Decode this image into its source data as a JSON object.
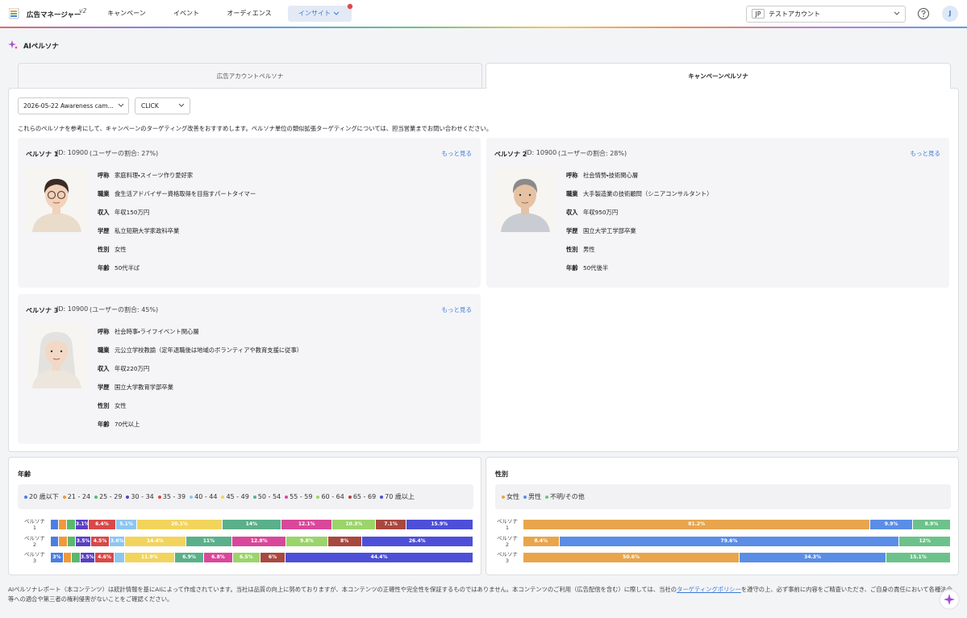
{
  "header": {
    "app_name": "広告マネージャー",
    "version": "v2",
    "nav": [
      "キャンペーン",
      "イベント",
      "オーディエンス",
      "インサイト"
    ],
    "account_region": "JP",
    "account_name": "テストアカウント",
    "avatar": "J"
  },
  "page_title": "AIペルソナ",
  "tabs": [
    "広告アカウントペルソナ",
    "キャンペーンペルソナ"
  ],
  "filters": {
    "campaign": "2026-05-22 Awareness cam...",
    "event": "CLICK"
  },
  "description": "これらのペルソナを参考にして、キャンペーンのターゲティング改善をおすすめします。ペルソナ単位の類似拡張ターゲティングについては、担当営業までお問い合わせください。",
  "personas": [
    {
      "name": "ペルソナ 1",
      "id": "ID: 10900",
      "share": "(ユーザーの割合: 27%)",
      "more": "もっと見る",
      "fields": [
        {
          "label": "呼称",
          "value": "家庭料理・スイーツ作り愛好家"
        },
        {
          "label": "職業",
          "value": "食生活アドバイザー資格取得を目指すパートタイマー"
        },
        {
          "label": "収入",
          "value": "年収150万円"
        },
        {
          "label": "学歴",
          "value": "私立短期大学家政科卒業"
        },
        {
          "label": "性別",
          "value": "女性"
        },
        {
          "label": "年齢",
          "value": "50代半ば"
        }
      ]
    },
    {
      "name": "ペルソナ 2",
      "id": "ID: 10900",
      "share": "(ユーザーの割合: 28%)",
      "more": "もっと見る",
      "fields": [
        {
          "label": "呼称",
          "value": "社会情勢・技術関心層"
        },
        {
          "label": "職業",
          "value": "大手製造業の技術顧問（シニアコンサルタント）"
        },
        {
          "label": "収入",
          "value": "年収950万円"
        },
        {
          "label": "学歴",
          "value": "国立大学工学部卒業"
        },
        {
          "label": "性別",
          "value": "男性"
        },
        {
          "label": "年齢",
          "value": "50代後半"
        }
      ]
    },
    {
      "name": "ペルソナ 3",
      "id": "ID: 10900",
      "share": "(ユーザーの割合: 45%)",
      "more": "もっと見る",
      "fields": [
        {
          "label": "呼称",
          "value": "社会時事・ライフイベント関心層"
        },
        {
          "label": "職業",
          "value": "元公立学校教諭（定年退職後は地域のボランティアや教育支援に従事）"
        },
        {
          "label": "収入",
          "value": "年収220万円"
        },
        {
          "label": "学歴",
          "value": "国立大学教育学部卒業"
        },
        {
          "label": "性別",
          "value": "女性"
        },
        {
          "label": "年齢",
          "value": "70代以上"
        }
      ]
    }
  ],
  "chart_data": [
    {
      "type": "bar",
      "stacked": true,
      "title": "年齢",
      "categories": [
        "ペルソナ 1",
        "ペルソナ 2",
        "ペルソナ 3"
      ],
      "series": [
        {
          "name": "20 歳以下",
          "color": "#4a7fe0",
          "values": [
            2.0,
            2.0,
            3
          ],
          "value_labels": [
            null,
            null,
            "3%"
          ]
        },
        {
          "name": "21 - 24",
          "color": "#f0993a",
          "values": [
            1.9,
            2.0,
            2.0
          ],
          "value_labels": [
            null,
            null,
            null
          ]
        },
        {
          "name": "25 - 29",
          "color": "#59b86e",
          "values": [
            2.0,
            2.0,
            2.0
          ],
          "value_labels": [
            null,
            null,
            null
          ]
        },
        {
          "name": "30 - 34",
          "color": "#5b3fc4",
          "values": [
            3.1,
            3.5,
            3.5
          ],
          "value_labels": [
            "3.1%",
            "3.5%",
            "3.5%"
          ]
        },
        {
          "name": "35 - 39",
          "color": "#d94848",
          "values": [
            6.4,
            4.5,
            4.6
          ],
          "value_labels": [
            "6.4%",
            "4.5%",
            "4.6%"
          ]
        },
        {
          "name": "40 - 44",
          "color": "#8cc6f0",
          "values": [
            5.1,
            3.6,
            2.4
          ],
          "value_labels": [
            "5.1%",
            "3.6%",
            null
          ]
        },
        {
          "name": "45 - 49",
          "color": "#f2d45c",
          "values": [
            20.1,
            14.4,
            11.9
          ],
          "value_labels": [
            "20.1%",
            "14.4%",
            "11.9%"
          ]
        },
        {
          "name": "50 - 54",
          "color": "#5ab08a",
          "values": [
            14,
            11,
            6.9
          ],
          "value_labels": [
            "14%",
            "11%",
            "6.9%"
          ]
        },
        {
          "name": "55 - 59",
          "color": "#d9479a",
          "values": [
            12.1,
            12.8,
            6.8
          ],
          "value_labels": [
            "12.1%",
            "12.8%",
            "6.8%"
          ]
        },
        {
          "name": "60 - 64",
          "color": "#9bd46a",
          "values": [
            10.3,
            9.8,
            6.5
          ],
          "value_labels": [
            "10.3%",
            "9.8%",
            "6.5%"
          ]
        },
        {
          "name": "65 - 69",
          "color": "#a8483f",
          "values": [
            7.1,
            8,
            6
          ],
          "value_labels": [
            "7.1%",
            "8%",
            "6%"
          ]
        },
        {
          "name": "70 歳以上",
          "color": "#4d4fd8",
          "values": [
            15.9,
            26.4,
            44.4
          ],
          "value_labels": [
            "15.9%",
            "26.4%",
            "44.4%"
          ]
        }
      ]
    },
    {
      "type": "bar",
      "stacked": true,
      "title": "性別",
      "categories": [
        "ペルソナ 1",
        "ペルソナ 2",
        "ペルソナ 3"
      ],
      "series": [
        {
          "name": "女性",
          "color": "#e8a54b",
          "values": [
            81.2,
            8.4,
            50.6
          ],
          "value_labels": [
            "81.2%",
            "8.4%",
            "50.6%"
          ]
        },
        {
          "name": "男性",
          "color": "#5a8de6",
          "values": [
            9.9,
            79.6,
            34.3
          ],
          "value_labels": [
            "9.9%",
            "79.6%",
            "34.3%"
          ]
        },
        {
          "name": "不明/その他",
          "color": "#6cc28a",
          "values": [
            8.9,
            12,
            15.1
          ],
          "value_labels": [
            "8.9%",
            "12%",
            "15.1%"
          ]
        }
      ]
    }
  ],
  "footer": {
    "text_before": "AIペルソナレポート（本コンテンツ）は統計情報を基にAIによって作成されています。当社は品質の向上に努めておりますが、本コンテンツの正確性や完全性を保証するものではありません。本コンテンツのご利用（広告配信を含む）に際しては、当社の",
    "link": "ターゲティングポリシー",
    "text_after": "を遵守の上、必ず事前に内容をご精査いただき、ご自身の責任において各種法令等への適合や第三者の権利侵害がないことをご確認ください。"
  }
}
